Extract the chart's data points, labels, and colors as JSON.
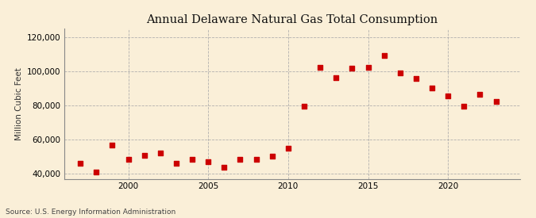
{
  "title": "Annual Delaware Natural Gas Total Consumption",
  "ylabel": "Million Cubic Feet",
  "source": "Source: U.S. Energy Information Administration",
  "background_color": "#faefd8",
  "marker_color": "#cc0000",
  "grid_color": "#aaaaaa",
  "years": [
    1997,
    1998,
    1999,
    2000,
    2001,
    2002,
    2003,
    2004,
    2005,
    2006,
    2007,
    2008,
    2009,
    2010,
    2011,
    2012,
    2013,
    2014,
    2015,
    2016,
    2017,
    2018,
    2019,
    2020,
    2021,
    2022,
    2023
  ],
  "values": [
    46000,
    41000,
    56500,
    48500,
    50500,
    52000,
    46000,
    48500,
    47000,
    43500,
    48500,
    48500,
    50000,
    55000,
    79500,
    102000,
    96000,
    101500,
    102000,
    109000,
    99000,
    95500,
    90000,
    85500,
    79500,
    86500,
    82000
  ],
  "ylim": [
    37000,
    125000
  ],
  "yticks": [
    40000,
    60000,
    80000,
    100000,
    120000
  ],
  "xticks": [
    2000,
    2005,
    2010,
    2015,
    2020
  ],
  "xlim": [
    1996,
    2024.5
  ]
}
